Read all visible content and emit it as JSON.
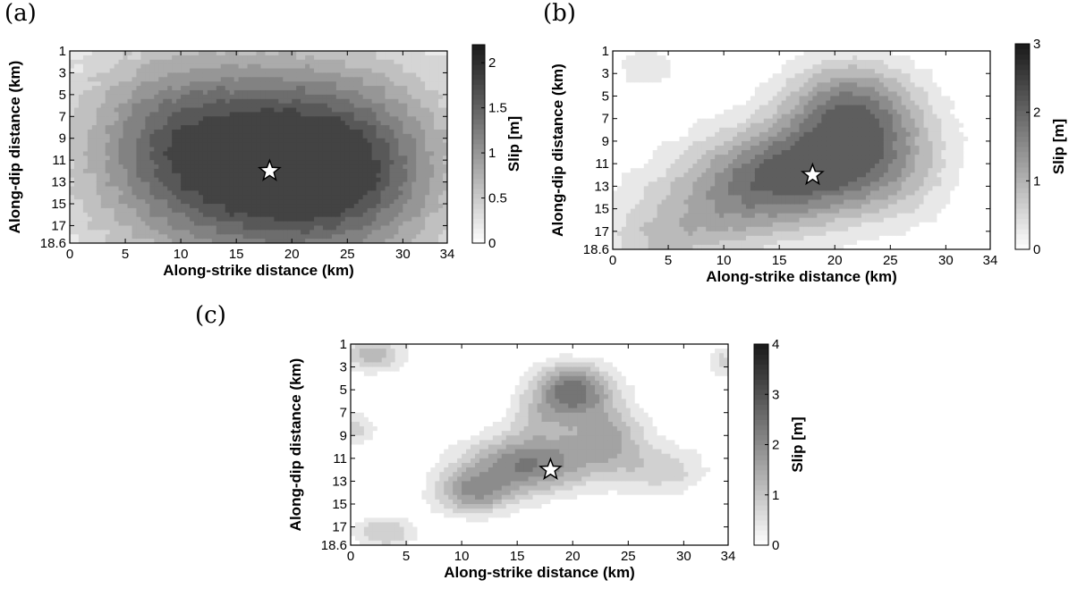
{
  "chart_data": [
    {
      "type": "contour",
      "panel_label": "(a)",
      "xlabel": "Along-strike distance (km)",
      "ylabel": "Along-dip distance (km)",
      "xlim": [
        0,
        34
      ],
      "ylim": [
        1,
        18.6
      ],
      "y_inverted": true,
      "xticks": [
        "0",
        "5",
        "10",
        "15",
        "20",
        "25",
        "30",
        "34"
      ],
      "yticks": [
        "1",
        "3",
        "5",
        "7",
        "9",
        "11",
        "13",
        "15",
        "17",
        "18.6"
      ],
      "colorbar": {
        "label": "Slip [m]",
        "range": [
          0,
          2.2
        ],
        "ticks": [
          "0",
          "0.5",
          "1",
          "1.5",
          "2"
        ],
        "tick_values": [
          0,
          0.5,
          1,
          1.5,
          2
        ]
      },
      "hypocenter": [
        18,
        12
      ],
      "asperities": [
        {
          "x": 18,
          "y": 11.5,
          "sx": 9.5,
          "sy": 6.5,
          "peak": 2.0
        },
        {
          "x": 26,
          "y": 12,
          "sx": 5,
          "sy": 5,
          "peak": 0.45
        },
        {
          "x": 8,
          "y": 8,
          "sx": 5,
          "sy": 5,
          "peak": 0.4
        }
      ],
      "background": 0.2,
      "levels": [
        0.2,
        0.4,
        0.6,
        0.8,
        1.0,
        1.2,
        1.4,
        1.6,
        1.8
      ]
    },
    {
      "type": "contour",
      "panel_label": "(b)",
      "xlabel": "Along-strike distance (km)",
      "ylabel": "Along-dip distance (km)",
      "xlim": [
        0,
        34
      ],
      "ylim": [
        1,
        18.6
      ],
      "y_inverted": true,
      "xticks": [
        "0",
        "5",
        "10",
        "15",
        "20",
        "25",
        "30",
        "34"
      ],
      "yticks": [
        "1",
        "3",
        "5",
        "7",
        "9",
        "11",
        "13",
        "15",
        "17",
        "18.6"
      ],
      "colorbar": {
        "label": "Slip [m]",
        "range": [
          0,
          3
        ],
        "ticks": [
          "0",
          "1",
          "2",
          "3"
        ],
        "tick_values": [
          0,
          1,
          2,
          3
        ]
      },
      "hypocenter": [
        18,
        12
      ],
      "asperities": [
        {
          "x": 17,
          "y": 11.5,
          "sx": 6,
          "sy": 3,
          "peak": 2.0
        },
        {
          "x": 21,
          "y": 6,
          "sx": 4,
          "sy": 3,
          "peak": 1.6
        },
        {
          "x": 10,
          "y": 15,
          "sx": 6,
          "sy": 3,
          "peak": 1.0
        },
        {
          "x": 4,
          "y": 18,
          "sx": 4,
          "sy": 2,
          "peak": 0.6
        },
        {
          "x": 25,
          "y": 10,
          "sx": 4,
          "sy": 4,
          "peak": 0.8
        },
        {
          "x": 3,
          "y": 2.5,
          "sx": 2,
          "sy": 1.2,
          "peak": 0.6
        }
      ],
      "background": 0,
      "levels": [
        0.3,
        0.6,
        0.9,
        1.2,
        1.5,
        1.8,
        2.1
      ]
    },
    {
      "type": "contour",
      "panel_label": "(c)",
      "xlabel": "Along-strike distance (km)",
      "ylabel": "Along-dip distance (km)",
      "xlim": [
        0,
        34
      ],
      "ylim": [
        1,
        18.6
      ],
      "y_inverted": true,
      "xticks": [
        "0",
        "5",
        "10",
        "15",
        "20",
        "25",
        "30",
        "34"
      ],
      "yticks": [
        "1",
        "3",
        "5",
        "7",
        "9",
        "11",
        "13",
        "15",
        "17",
        "18.6"
      ],
      "colorbar": {
        "label": "Slip [m]",
        "range": [
          0,
          4
        ],
        "ticks": [
          "0",
          "1",
          "2",
          "3",
          "4"
        ],
        "tick_values": [
          0,
          1,
          2,
          3,
          4
        ]
      },
      "hypocenter": [
        18,
        12
      ],
      "asperities": [
        {
          "x": 16,
          "y": 11.5,
          "sx": 4,
          "sy": 1.8,
          "peak": 2.4
        },
        {
          "x": 20,
          "y": 5,
          "sx": 2.5,
          "sy": 1.6,
          "peak": 2.6
        },
        {
          "x": 11,
          "y": 14,
          "sx": 2.5,
          "sy": 1.4,
          "peak": 1.8
        },
        {
          "x": 23,
          "y": 9,
          "sx": 2.5,
          "sy": 2,
          "peak": 1.6
        },
        {
          "x": 28,
          "y": 12,
          "sx": 3,
          "sy": 1.6,
          "peak": 1.0
        },
        {
          "x": 2,
          "y": 2,
          "sx": 2,
          "sy": 1,
          "peak": 1.5
        },
        {
          "x": 3,
          "y": 17.5,
          "sx": 2,
          "sy": 1,
          "peak": 1.2
        },
        {
          "x": 0.5,
          "y": 8.5,
          "sx": 1.2,
          "sy": 1,
          "peak": 1.0
        },
        {
          "x": 33.5,
          "y": 2.5,
          "sx": 1,
          "sy": 1,
          "peak": 0.9
        },
        {
          "x": 17,
          "y": 7.5,
          "sx": 2,
          "sy": 1.5,
          "peak": 0.9
        }
      ],
      "background": 0,
      "levels": [
        0.4,
        0.8,
        1.2,
        1.6,
        2.0,
        2.4
      ]
    }
  ]
}
